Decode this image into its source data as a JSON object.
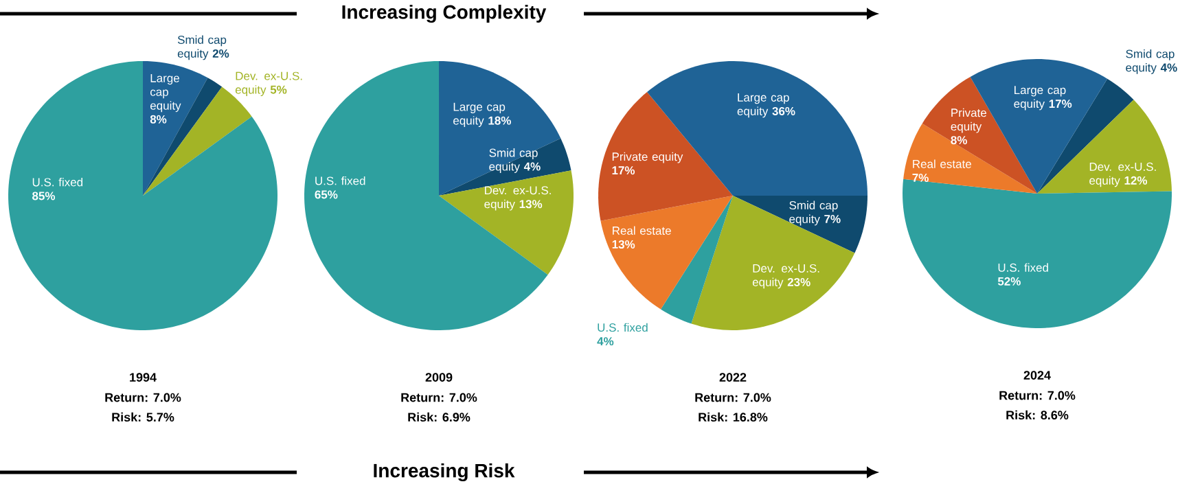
{
  "chart_data": [
    {
      "type": "other",
      "annotations": [
        "Increasing Complexity",
        "Increasing Risk"
      ]
    },
    {
      "type": "pie",
      "title": "1994",
      "categories": [
        "Large cap equity",
        "Smid cap equity",
        "Dev. ex-U.S. equity",
        "U.S. fixed"
      ],
      "values": [
        8,
        2,
        5,
        85
      ],
      "value_labels": [
        "8%",
        "2%",
        "5%",
        "85%"
      ],
      "colors": [
        "#1f6396",
        "#0f4a6e",
        "#a3b426",
        "#2ea09f"
      ],
      "annotations": [
        "Return:  7.0%",
        "Risk:  5.7%"
      ]
    },
    {
      "type": "pie",
      "title": "2009",
      "categories": [
        "Large cap equity",
        "Smid cap equity",
        "Dev. ex-U.S. equity",
        "U.S. fixed"
      ],
      "values": [
        18,
        4,
        13,
        65
      ],
      "value_labels": [
        "18%",
        "4%",
        "13%",
        "65%"
      ],
      "colors": [
        "#1f6396",
        "#0f4a6e",
        "#a3b426",
        "#2ea09f"
      ],
      "annotations": [
        "Return:  7.0%",
        "Risk:  6.9%"
      ]
    },
    {
      "type": "pie",
      "title": "2022",
      "categories": [
        "Smid cap equity",
        "Dev. ex-U.S. equity",
        "U.S. fixed",
        "Real estate",
        "Private equity",
        "Large cap equity"
      ],
      "values": [
        7,
        23,
        4,
        13,
        17,
        36
      ],
      "value_labels": [
        "7%",
        "23%",
        "4%",
        "13%",
        "17%",
        "36%"
      ],
      "colors": [
        "#0f4a6e",
        "#a3b426",
        "#2ea09f",
        "#ec7a2a",
        "#cc5224",
        "#1f6396"
      ],
      "annotations": [
        "Return:  7.0%",
        "Risk:  16.8%"
      ]
    },
    {
      "type": "pie",
      "title": "2024",
      "categories": [
        "Smid cap equity",
        "Dev. ex-U.S. equity",
        "U.S. fixed",
        "Real estate",
        "Private equity",
        "Large cap equity"
      ],
      "values": [
        4,
        12,
        52,
        7,
        8,
        17
      ],
      "value_labels": [
        "4%",
        "12%",
        "52%",
        "7%",
        "8%",
        "17%"
      ],
      "colors": [
        "#0f4a6e",
        "#a3b426",
        "#2ea09f",
        "#ec7a2a",
        "#cc5224",
        "#1f6396"
      ],
      "annotations": [
        "Return:  7.0%",
        "Risk:  8.6%"
      ]
    }
  ]
}
